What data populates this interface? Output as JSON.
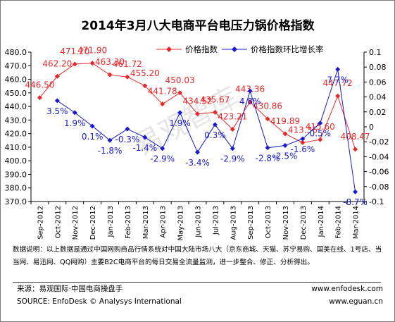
{
  "chart_data": {
    "type": "line",
    "title": "2014年3月八大电商平台电压力锅价格指数",
    "categories": [
      "Sep-2012",
      "Oct-2012",
      "Nov-2012",
      "Dec-2012",
      "Jan-2013",
      "Feb-2013",
      "Mar-2013",
      "Apr-2013",
      "May-2013",
      "Jun-2013",
      "Jul-2013",
      "Aug-2013",
      "Sep-2013",
      "Oct-2013",
      "Nov-2013",
      "Dec-2013",
      "Jan-2014",
      "Feb-2014",
      "Mar-2014"
    ],
    "series": [
      {
        "name": "价格指数",
        "axis": "left",
        "color": "#e8282a",
        "values": [
          446.5,
          462.2,
          471.2,
          471.9,
          463.3,
          461.72,
          455.2,
          441.78,
          450.03,
          434.52,
          435.67,
          423.21,
          443.36,
          430.86,
          419.89,
          413.36,
          415.6,
          447.72,
          408.47
        ],
        "labels": [
          "446.50",
          "462.20",
          "471.20",
          "471.90",
          "463.30",
          "461.72",
          "455.20",
          "441.78",
          "450.03",
          "434.52",
          "435.67",
          "423.21",
          "443.36",
          "430.86",
          "419.89",
          "413.36",
          "415.60",
          "447.72",
          "408.47"
        ]
      },
      {
        "name": "价格指数环比增长率",
        "axis": "right",
        "color": "#1a1acc",
        "values": [
          null,
          0.035,
          0.019,
          0.001,
          -0.018,
          -0.003,
          -0.014,
          -0.029,
          0.019,
          -0.034,
          0.003,
          -0.029,
          0.048,
          -0.028,
          -0.025,
          -0.016,
          0.005,
          0.077,
          -0.087
        ],
        "labels": [
          "",
          "3.5%",
          "1.9%",
          "0.1%",
          "-1.8%",
          "-0.3%",
          "-1.4%",
          "-2.9%",
          "1.9%",
          "-3.4%",
          "0.3%",
          "-2.9%",
          "4.8%",
          "-2.8%",
          "-2.5%",
          "-1.6%",
          "0.5%",
          "7.7%",
          "-8.7%"
        ]
      }
    ],
    "y_left": {
      "min": 370,
      "max": 480,
      "step": 10,
      "ticks": [
        "370.0",
        "380.0",
        "390.0",
        "400.0",
        "410.0",
        "420.0",
        "430.0",
        "440.0",
        "450.0",
        "460.0",
        "470.0",
        "480.0"
      ]
    },
    "y_right": {
      "min": -0.1,
      "max": 0.1,
      "step": 0.02,
      "ticks": [
        "-0.1",
        "-0.08",
        "-0.06",
        "-0.04",
        "-0.02",
        "0",
        "0.02",
        "0.04",
        "0.06",
        "0.08",
        "0.1"
      ]
    },
    "legend_position": "top-right",
    "grid": false,
    "watermark": "易观智库"
  },
  "note": "数据说明：以上数据是通过中国网购商品行情系统对中国大陆市场八大（京东商城、天猫、苏宁易购、国美在线、1号店、当当网、易迅网、QQ网购）主要B2C电商平台的每日交易全流量监测，进一步整合、修正、分析得出。",
  "source": {
    "cn": "来源：易观国际·中国电商操盘手",
    "en": "SOURCE: EnfoDesk © Analysys International",
    "site1": "www.enfodesk.com",
    "site2": "www.eguan.cn"
  }
}
